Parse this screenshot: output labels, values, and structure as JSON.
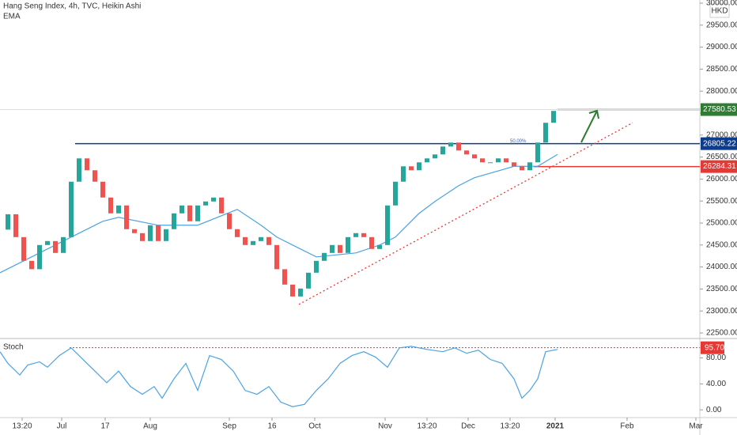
{
  "chart_data": [
    {
      "type": "candlestick",
      "title": "Hang Seng Index, 4h, TVC, Heikin Ashi",
      "indicator": "EMA",
      "currency": "HKD",
      "x": [
        0,
        1,
        2,
        3,
        4,
        5,
        6,
        7,
        8,
        9,
        10,
        11,
        12,
        13,
        14,
        15,
        16,
        17,
        18,
        19,
        20,
        21,
        22,
        23,
        24,
        25,
        26,
        27,
        28,
        29,
        30,
        31,
        32,
        33,
        34,
        35,
        36,
        37,
        38,
        39,
        40,
        41,
        42,
        43,
        44,
        45,
        46,
        47,
        48,
        49,
        50,
        51,
        52,
        53,
        54,
        55,
        56,
        57,
        58,
        59,
        60,
        61,
        62,
        63,
        64,
        65,
        66,
        67,
        68,
        69,
        70
      ],
      "close": [
        24850,
        25200,
        24680,
        24140,
        23950,
        24500,
        24590,
        24320,
        24680,
        25940,
        26470,
        26200,
        25940,
        25580,
        25220,
        25400,
        24860,
        24770,
        24590,
        24950,
        24590,
        24860,
        25220,
        25400,
        25040,
        25400,
        25490,
        25580,
        25220,
        24860,
        24680,
        24500,
        24590,
        24680,
        24500,
        23950,
        23600,
        23330,
        23510,
        23870,
        24140,
        24320,
        24500,
        24320,
        24680,
        24770,
        24680,
        24410,
        24500,
        25400,
        25940,
        26290,
        26200,
        26380,
        26470,
        26560,
        26740,
        26830,
        26650,
        26560,
        26470,
        26380,
        26380,
        26470,
        26380,
        26290,
        26200,
        26380,
        26830,
        27280,
        27550
      ],
      "up_color": "#26a69a",
      "down_color": "#ef5350",
      "ema": {
        "color": "#4ba3e3",
        "x": [
          0,
          5,
          10,
          13,
          15,
          20,
          25,
          30,
          33,
          35,
          38,
          40,
          45,
          48,
          50,
          53,
          55,
          58,
          60,
          65,
          68,
          70.5
        ],
        "values": [
          23870,
          24320,
          24770,
          25040,
          25130,
          24950,
          24950,
          25310,
          24950,
          24680,
          24410,
          24230,
          24320,
          24500,
          24680,
          25220,
          25490,
          25850,
          26030,
          26290,
          26290,
          26560
        ]
      },
      "levels": [
        {
          "value": 27580.53,
          "color": "#2e7d32",
          "from": 70.5
        },
        {
          "value": 26805.22,
          "color": "#0d3c8c",
          "from": 9.5
        },
        {
          "value": 26284.31,
          "color": "#e53935",
          "from": 67.5
        }
      ],
      "trendline": {
        "x": [
          37.8,
          80
        ],
        "y": [
          23150,
          27280
        ],
        "color": "#e53935"
      },
      "annotation": "50.00%",
      "xlim": [
        0,
        88.5
      ],
      "ylim": [
        22392,
        30072
      ],
      "yticks": [
        {
          "value": 22500,
          "label": "22500.00"
        },
        {
          "value": 23000,
          "label": "23000.00"
        },
        {
          "value": 23500,
          "label": "23500.00"
        },
        {
          "value": 24000,
          "label": "24000.00"
        },
        {
          "value": 24500,
          "label": "24500.00"
        },
        {
          "value": 25000,
          "label": "25000.00"
        },
        {
          "value": 25500,
          "label": "25500.00"
        },
        {
          "value": 26000,
          "label": "26000.00"
        },
        {
          "value": 26500,
          "label": "26500.00"
        },
        {
          "value": 27000,
          "label": "27000.00"
        },
        {
          "value": 27500,
          "label": "27500.00"
        },
        {
          "value": 28000,
          "label": "28000.00"
        },
        {
          "value": 28500,
          "label": "28500.00"
        },
        {
          "value": 29000,
          "label": "29000.00"
        },
        {
          "value": 29500,
          "label": "29500.00"
        },
        {
          "value": 30000,
          "label": "30000.00"
        }
      ],
      "xticks": [
        {
          "value": 2.8,
          "label": "13:20"
        },
        {
          "value": 7.8,
          "label": "Jul"
        },
        {
          "value": 13.3,
          "label": "17"
        },
        {
          "value": 19,
          "label": "Aug"
        },
        {
          "value": 29,
          "label": "Sep"
        },
        {
          "value": 34.4,
          "label": "16"
        },
        {
          "value": 39.8,
          "label": "Oct"
        },
        {
          "value": 48.7,
          "label": "Nov"
        },
        {
          "value": 54,
          "label": "13:20"
        },
        {
          "value": 59.2,
          "label": "Dec"
        },
        {
          "value": 64.5,
          "label": "13:20"
        },
        {
          "value": 70.2,
          "label": "2021"
        },
        {
          "value": 79.3,
          "label": "Feb"
        },
        {
          "value": 88,
          "label": "Mar"
        }
      ]
    },
    {
      "type": "line",
      "title": "Stoch",
      "color": "#4ba3e3",
      "x": [
        0,
        1,
        2.5,
        3.5,
        5,
        6,
        7.5,
        9,
        10.5,
        12,
        13.5,
        15,
        16.5,
        18,
        19.5,
        20.5,
        22,
        23.5,
        25,
        26.5,
        28,
        29.5,
        31,
        32.5,
        34,
        35.5,
        37,
        38.5,
        40,
        41.5,
        43,
        44.5,
        46,
        47.5,
        49,
        50.5,
        52,
        54,
        56,
        57.5,
        59,
        60.5,
        62,
        63.5,
        65,
        66,
        67,
        68,
        69,
        70.5
      ],
      "values": [
        89.5,
        71.6,
        53.7,
        69,
        74,
        65.7,
        83.6,
        95.5,
        77.6,
        59.7,
        41.8,
        59.7,
        35.8,
        23.9,
        35.8,
        17.9,
        47.8,
        71.6,
        29.9,
        83.6,
        77.6,
        59.7,
        29.9,
        23.9,
        35.8,
        11.9,
        4.8,
        8.4,
        29.9,
        47.8,
        71.6,
        83.6,
        89.6,
        81.2,
        65.7,
        95.5,
        97.9,
        93.1,
        89.6,
        95.5,
        87.2,
        91.9,
        77.6,
        71.6,
        47.8,
        17.9,
        29.9,
        47.8,
        89.6,
        93.1
      ],
      "level": {
        "value": 95.7,
        "label": "95.70",
        "color": "#e53935"
      },
      "ylim": [
        -12,
        107.5
      ],
      "yticks": [
        {
          "value": 0,
          "label": "0.00"
        },
        {
          "value": 40,
          "label": "40.00"
        },
        {
          "value": 80,
          "label": "80.00"
        }
      ]
    }
  ]
}
